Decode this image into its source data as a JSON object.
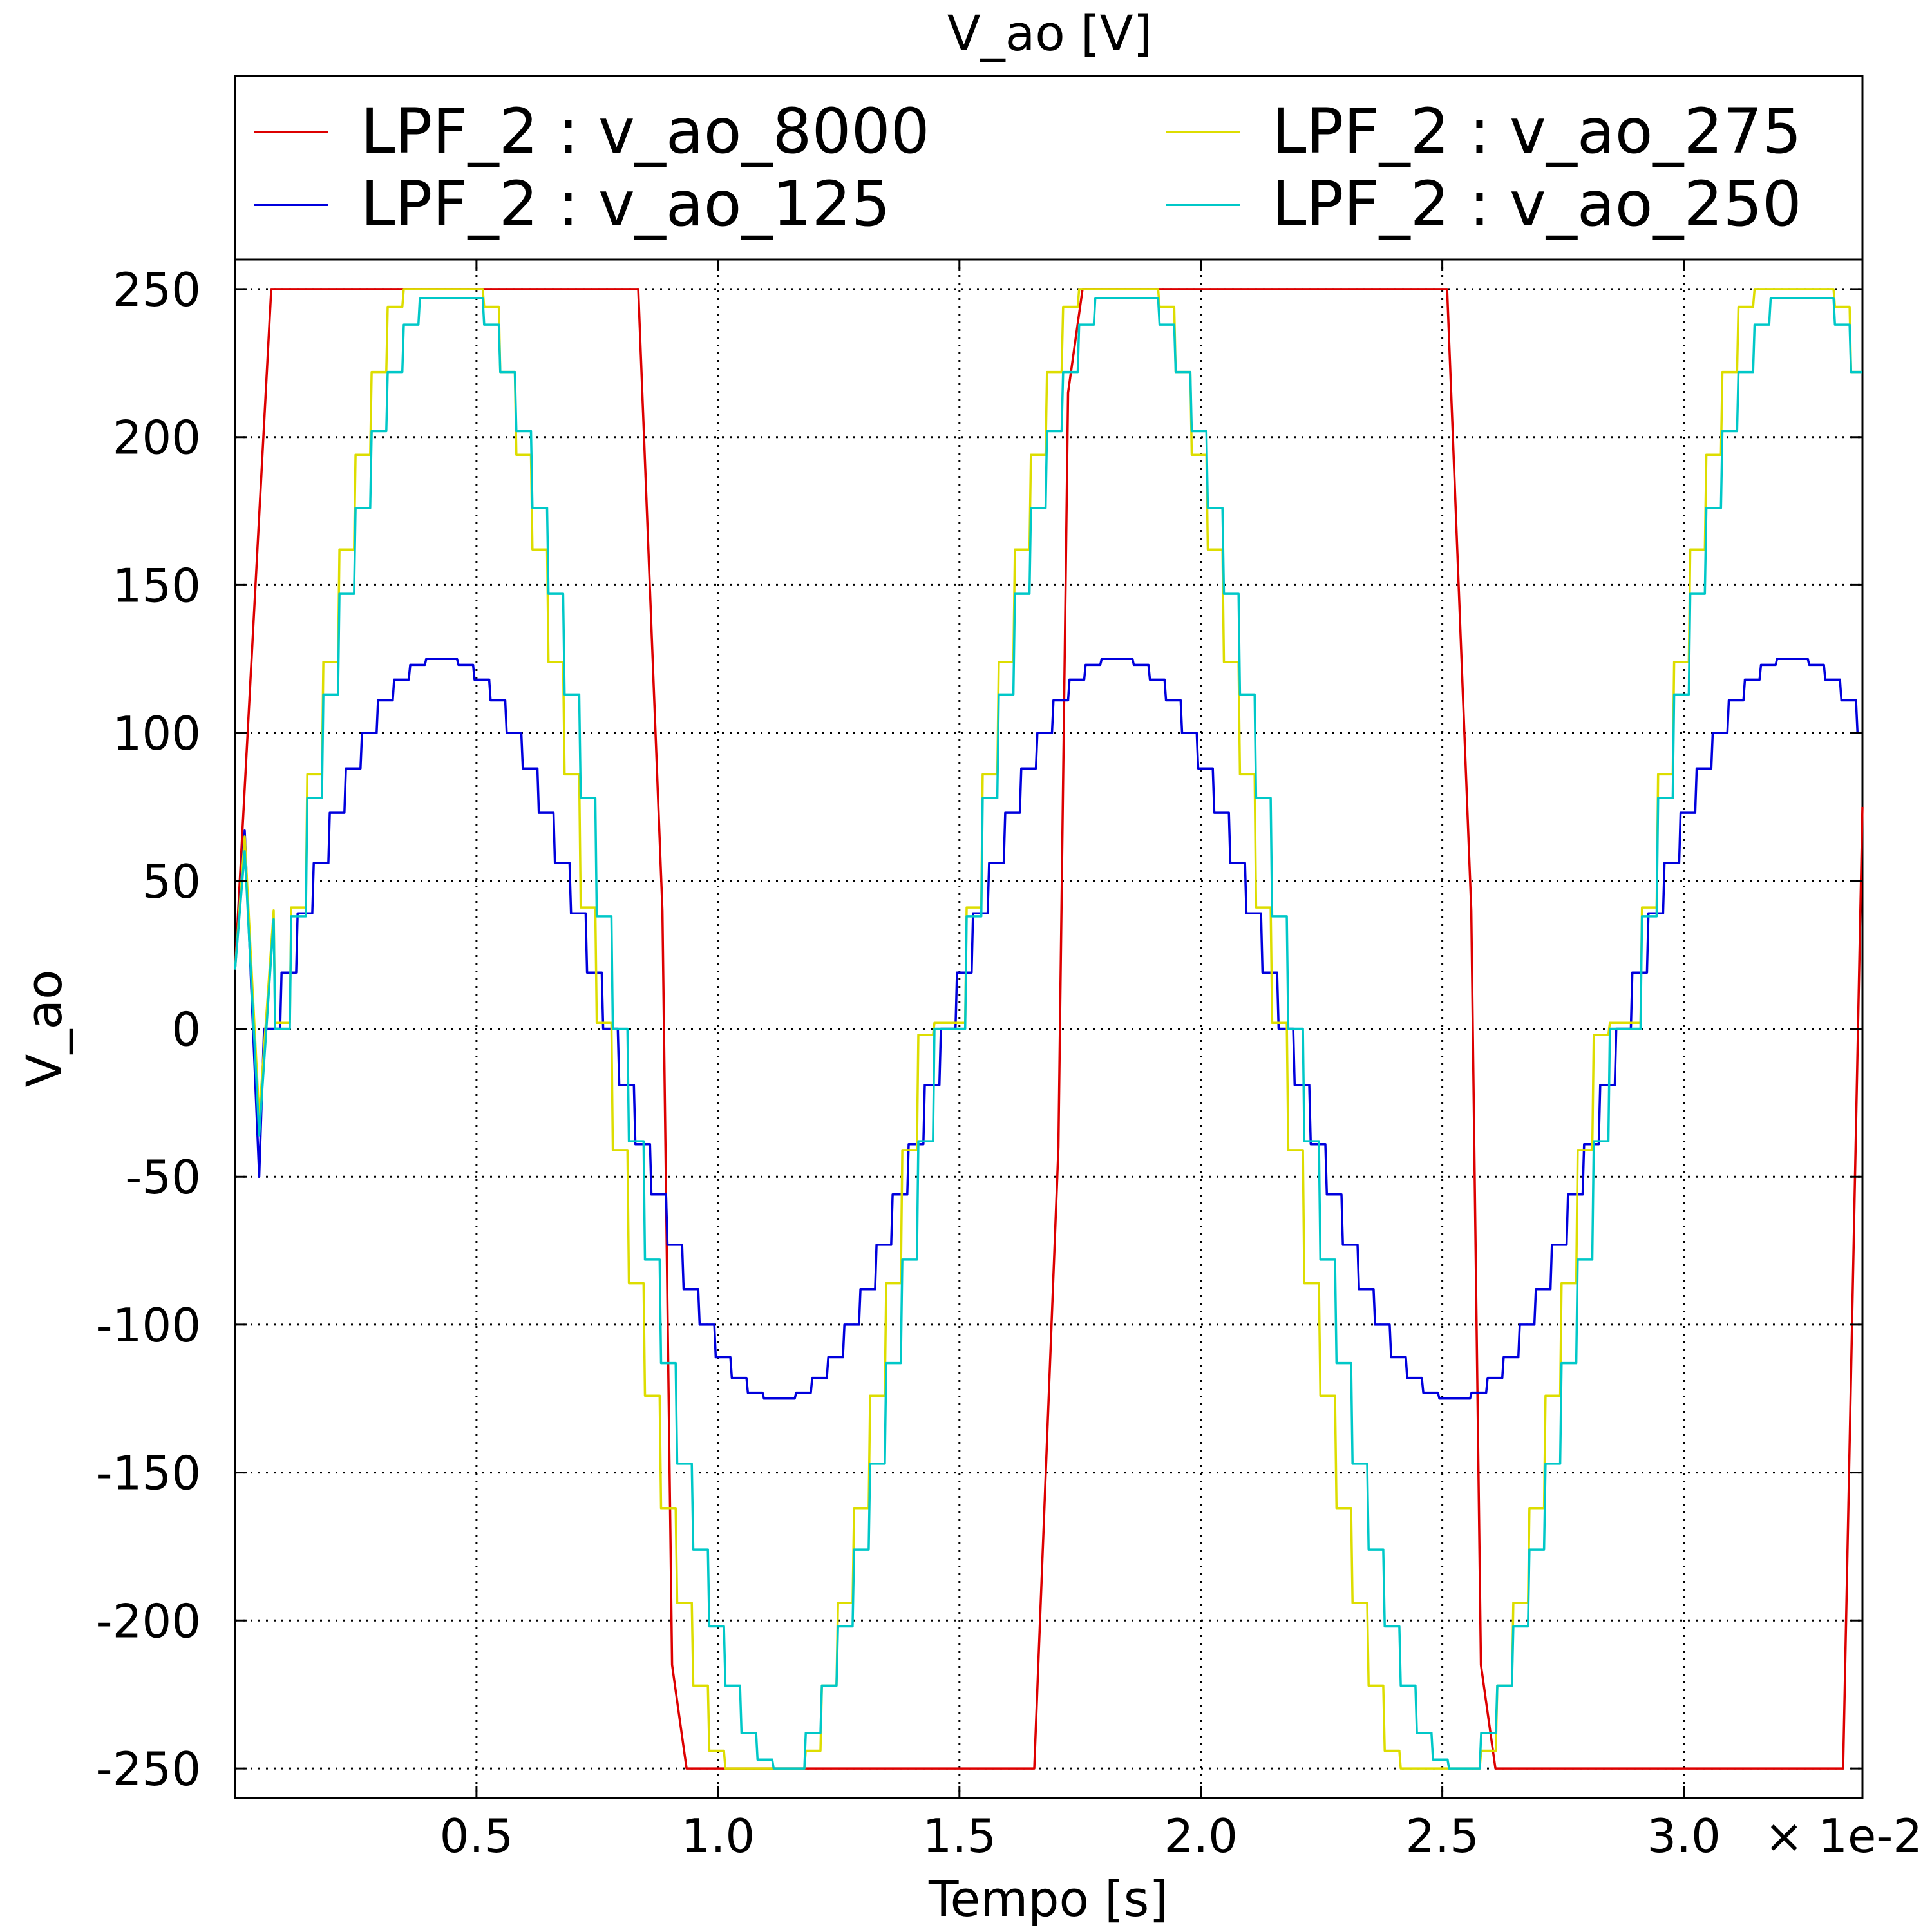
{
  "chart_data": {
    "type": "line",
    "title": "V_ao [V]",
    "xlabel": "Tempo [s]",
    "ylabel": "V_ao",
    "x_offset_label": "× 1e-2",
    "xlim": [
      0.0,
      0.0337
    ],
    "ylim": [
      -260,
      260
    ],
    "x_ticks": [
      0.005,
      0.01,
      0.015,
      0.02,
      0.025,
      0.03
    ],
    "x_tick_labels": [
      "0.5",
      "1.0",
      "1.5",
      "2.0",
      "2.5",
      "3.0"
    ],
    "y_ticks": [
      250,
      200,
      150,
      100,
      50,
      0,
      -50,
      -100,
      -150,
      -200,
      -250
    ],
    "y_tick_labels": [
      "250",
      "200",
      "150",
      "100",
      "50",
      "0",
      "-50",
      "-100",
      "-150",
      "-200",
      "-250"
    ],
    "grid": true,
    "legend_position": "top",
    "period": 0.01667,
    "series": [
      {
        "name": "LPF_2 : v_ao_8000",
        "color": "#dd0000",
        "x": [
          0.0,
          0.00075,
          0.00835,
          0.00885,
          0.00905,
          0.00935,
          0.01655,
          0.01705,
          0.01725,
          0.01755,
          0.0251,
          0.0256,
          0.0258,
          0.0261,
          0.0333,
          0.0337
        ],
        "y": [
          20,
          250,
          250,
          40,
          -215,
          -250,
          -250,
          -40,
          215,
          250,
          250,
          40,
          -215,
          -250,
          -250,
          75
        ]
      },
      {
        "name": "LPF_2 : v_ao_125",
        "color": "#0000dd",
        "amplitude": 125,
        "step": 0.000333,
        "levels": [
          0,
          19,
          39,
          56,
          73,
          88,
          100,
          111,
          118,
          123,
          125,
          125,
          123,
          118,
          111,
          100,
          88,
          73,
          56,
          39,
          19,
          0,
          -19,
          -39,
          -56,
          -73,
          -88,
          -100,
          -111,
          -118,
          -123,
          -125,
          -125,
          -123,
          -118,
          -111,
          -100,
          -88,
          -73,
          -56,
          -39,
          -19
        ],
        "startup": [
          [
            0.0,
            20
          ],
          [
            0.0002,
            67
          ],
          [
            0.0005,
            -50
          ],
          [
            0.0006,
            0
          ]
        ]
      },
      {
        "name": "LPF_2 : v_ao_275",
        "color": "#dddd00",
        "amplitude": 275,
        "step": 0.000333,
        "levels": [
          2,
          41,
          86,
          124,
          162,
          194,
          222,
          244,
          250,
          250,
          250,
          250,
          250,
          244,
          222,
          194,
          162,
          124,
          86,
          41,
          2,
          -41,
          -86,
          -124,
          -162,
          -194,
          -222,
          -244,
          -250,
          -250,
          -250,
          -250,
          -250,
          -244,
          -222,
          -194,
          -162,
          -124,
          -86,
          -41,
          -2,
          2
        ],
        "startup": [
          [
            0.0,
            20
          ],
          [
            0.0002,
            65
          ],
          [
            0.0005,
            -30
          ],
          [
            0.0008,
            40
          ]
        ]
      },
      {
        "name": "LPF_2 : v_ao_250",
        "color": "#00c8c8",
        "amplitude": 250,
        "step": 0.000333,
        "levels": [
          0,
          38,
          78,
          113,
          147,
          176,
          202,
          222,
          238,
          247,
          247,
          247,
          247,
          238,
          222,
          202,
          176,
          147,
          113,
          78,
          38,
          0,
          -38,
          -78,
          -113,
          -147,
          -176,
          -202,
          -222,
          -238,
          -247,
          -250,
          -250,
          -238,
          -222,
          -202,
          -176,
          -147,
          -113,
          -78,
          -38,
          0
        ],
        "startup": [
          [
            0.0,
            20
          ],
          [
            0.0002,
            60
          ],
          [
            0.0005,
            -36
          ],
          [
            0.0008,
            37
          ]
        ]
      }
    ]
  }
}
